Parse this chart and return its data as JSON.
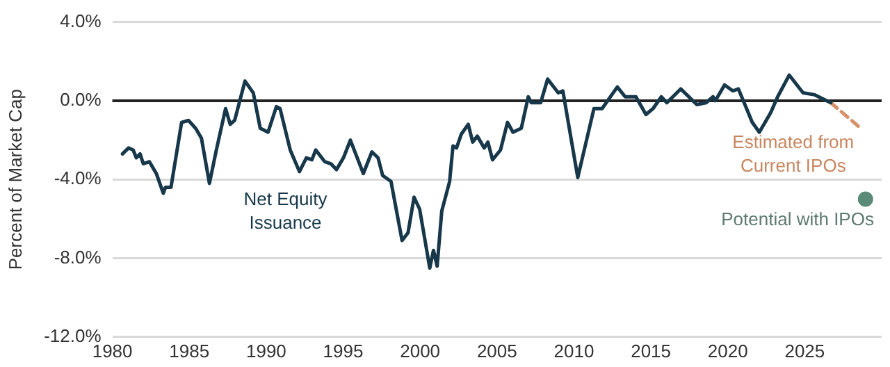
{
  "chart_data": {
    "type": "line",
    "ylabel": "Percent of Market Cap",
    "xlim": [
      1980,
      2030
    ],
    "xticks": [
      1980,
      1985,
      1990,
      1995,
      2000,
      2005,
      2010,
      2015,
      2020,
      2025
    ],
    "ylim": [
      -12,
      4
    ],
    "yticks": [
      {
        "value": 4,
        "label": "4.0%"
      },
      {
        "value": 0,
        "label": "0.0%"
      },
      {
        "value": -4,
        "label": "-4.0%"
      },
      {
        "value": -8,
        "label": "-8.0%"
      },
      {
        "value": -12,
        "label": "-12.0%"
      }
    ],
    "grid": "y",
    "legend": false,
    "marker": "none",
    "ref_lines": [
      {
        "axis": "y",
        "value": 0,
        "color": "#222222"
      }
    ],
    "series": [
      {
        "name": "Net Equity Issuance",
        "type": "line",
        "color": "#17384a",
        "line_style": "solid",
        "x": [
          1980.66,
          1981.05,
          1981.35,
          1981.56,
          1981.8,
          1982.01,
          1982.41,
          1982.86,
          1983.31,
          1983.45,
          1983.81,
          1984.5,
          1984.95,
          1985.41,
          1985.79,
          1986.31,
          1986.76,
          1987.36,
          1987.66,
          1987.95,
          1988.62,
          1989.16,
          1989.61,
          1990.12,
          1990.66,
          1990.9,
          1991.56,
          1992.16,
          1992.61,
          1992.97,
          1993.22,
          1993.81,
          1994.2,
          1994.57,
          1995.02,
          1995.47,
          1996.31,
          1996.87,
          1997.27,
          1997.57,
          1998.11,
          1998.83,
          1999.22,
          1999.61,
          1999.97,
          2000.63,
          2000.87,
          2001.11,
          2001.41,
          2001.92,
          2002.14,
          2002.37,
          2002.68,
          2003.13,
          2003.42,
          2003.72,
          2004.17,
          2004.41,
          2004.71,
          2005.23,
          2005.68,
          2006.04,
          2006.58,
          2007.03,
          2007.23,
          2007.84,
          2008.29,
          2008.98,
          2009.28,
          2010.25,
          2011.3,
          2011.83,
          2012.82,
          2013.33,
          2014.03,
          2014.68,
          2015.14,
          2015.68,
          2016.04,
          2016.94,
          2017.99,
          2018.59,
          2019.04,
          2019.19,
          2019.79,
          2020.33,
          2020.69,
          2021.59,
          2022.05,
          2022.79,
          2023.24,
          2023.99,
          2024.89,
          2025.65,
          2026.69
        ],
        "values": [
          -2.7,
          -2.4,
          -2.5,
          -2.9,
          -2.7,
          -3.2,
          -3.1,
          -3.7,
          -4.7,
          -4.4,
          -4.4,
          -1.1,
          -1.0,
          -1.4,
          -1.9,
          -4.2,
          -2.5,
          -0.4,
          -1.2,
          -1.0,
          1.0,
          0.4,
          -1.4,
          -1.6,
          -0.3,
          -0.4,
          -2.5,
          -3.6,
          -2.9,
          -3.0,
          -2.5,
          -3.1,
          -3.2,
          -3.5,
          -2.9,
          -2.0,
          -3.7,
          -2.6,
          -2.9,
          -3.8,
          -4.1,
          -7.1,
          -6.7,
          -4.9,
          -5.5,
          -8.5,
          -7.6,
          -8.4,
          -5.6,
          -4.1,
          -2.3,
          -2.4,
          -1.7,
          -1.2,
          -2.1,
          -1.8,
          -2.4,
          -2.1,
          -3.0,
          -2.5,
          -1.1,
          -1.6,
          -1.4,
          0.2,
          -0.1,
          -0.1,
          1.1,
          0.4,
          0.5,
          -3.9,
          -0.4,
          -0.4,
          0.7,
          0.2,
          0.2,
          -0.7,
          -0.4,
          0.2,
          -0.1,
          0.6,
          -0.2,
          -0.1,
          0.2,
          0.0,
          0.8,
          0.5,
          0.6,
          -1.1,
          -1.6,
          -0.6,
          0.2,
          1.3,
          0.4,
          0.3,
          -0.1
        ]
      },
      {
        "name": "Estimated from Current IPOs",
        "type": "line",
        "color": "#d6916a",
        "line_style": "dashed",
        "x": [
          2026.69,
          2027.59,
          2028.49
        ],
        "values": [
          -0.1,
          -0.7,
          -1.3
        ]
      },
      {
        "name": "Potential with IPOs",
        "type": "scatter",
        "color": "#5a8a78",
        "marker": "circle",
        "x": [
          2028.95
        ],
        "values": [
          -5.0
        ]
      }
    ]
  }
}
